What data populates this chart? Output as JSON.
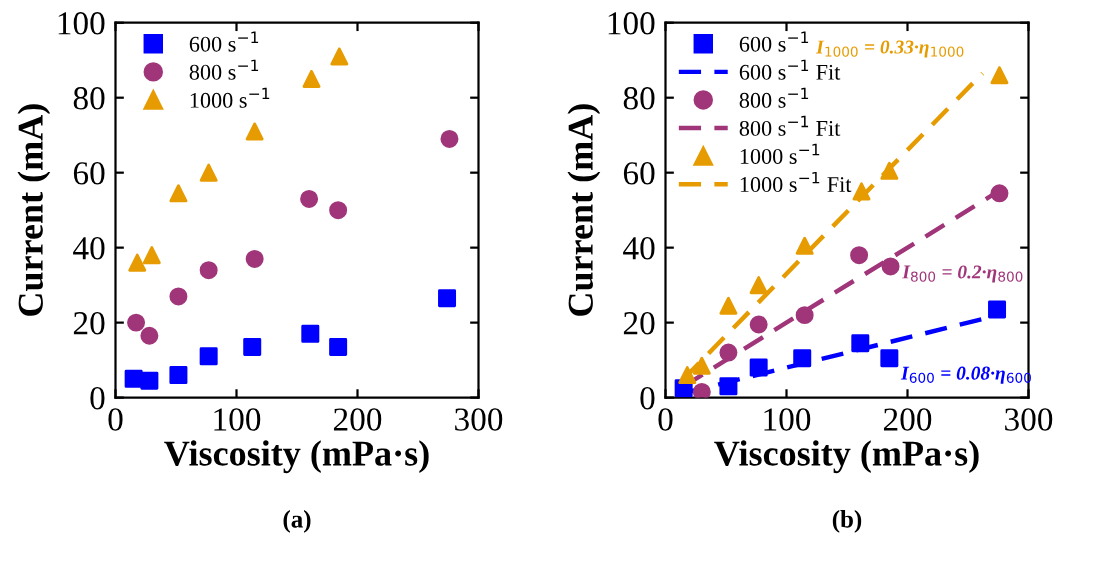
{
  "chart_data": [
    {
      "type": "scatter",
      "title": "(a)",
      "xlabel": "Viscosity (mPa·s)",
      "ylabel": "Current (mA)",
      "xlim": [
        0,
        300
      ],
      "ylim": [
        0,
        100
      ],
      "xticks": [
        0,
        100,
        200,
        300
      ],
      "yticks": [
        0,
        20,
        40,
        60,
        80,
        100
      ],
      "grid": false,
      "legend": "top left",
      "series": [
        {
          "name": "600 s$^{−1}$",
          "color": "#0000ff",
          "marker": "square",
          "x": [
            15,
            28,
            52,
            77,
            113,
            161,
            184,
            274
          ],
          "values": [
            5,
            4.5,
            6,
            11,
            13.5,
            17,
            13.5,
            26.5
          ]
        },
        {
          "name": "800 s$^{−1}$",
          "color": "#a0357a",
          "marker": "circle",
          "x": [
            17,
            28,
            52,
            77,
            115,
            160,
            184,
            276
          ],
          "values": [
            20,
            16.5,
            27,
            34,
            37,
            53,
            50,
            69
          ]
        },
        {
          "name": "1000 s$^{−1}$",
          "color": "#e69b00",
          "marker": "triangle",
          "x": [
            18,
            30,
            52,
            77,
            115,
            162,
            185
          ],
          "values": [
            36,
            38,
            54.5,
            60,
            71,
            85,
            91
          ]
        }
      ]
    },
    {
      "type": "scatter",
      "title": "(b)",
      "xlabel": "Viscosity (mPa·s)",
      "ylabel": "Current (mA)",
      "xlim": [
        0,
        300
      ],
      "ylim": [
        0,
        100
      ],
      "xticks": [
        0,
        100,
        200,
        300
      ],
      "yticks": [
        0,
        20,
        40,
        60,
        80,
        100
      ],
      "grid": false,
      "legend": "top left",
      "series": [
        {
          "name": "600 s$^{−1}$",
          "color": "#0000ff",
          "marker": "square",
          "x": [
            15,
            52,
            77,
            113,
            161,
            185,
            274
          ],
          "values": [
            2.5,
            3,
            8,
            10.5,
            14.5,
            10.5,
            23.5
          ]
        },
        {
          "name": "600 s$^{−1}$ Fit",
          "type": "line",
          "line_style": "dashed",
          "color": "#0000ff",
          "x": [
            15,
            275
          ],
          "values": [
            1.2,
            22
          ]
        },
        {
          "name": "800 s$^{−1}$",
          "color": "#a0357a",
          "marker": "circle",
          "x": [
            30,
            52,
            77,
            115,
            160,
            186,
            276
          ],
          "values": [
            1.5,
            12,
            19.5,
            22,
            38,
            35,
            54.5
          ]
        },
        {
          "name": "800 s$^{−1}$ Fit",
          "type": "line",
          "line_style": "dashed",
          "color": "#a0357a",
          "x": [
            15,
            275
          ],
          "values": [
            3,
            55
          ]
        },
        {
          "name": "1000 s$^{−1}$",
          "color": "#e69b00",
          "marker": "triangle",
          "x": [
            18,
            30,
            52,
            77,
            115,
            162,
            185,
            276
          ],
          "values": [
            6,
            8.5,
            24.5,
            30,
            40.5,
            55,
            60.5,
            86
          ]
        },
        {
          "name": "1000 s$^{−1}$ Fit",
          "type": "line",
          "line_style": "dashed",
          "color": "#e69b00",
          "x": [
            15,
            262
          ],
          "values": [
            5,
            86.5
          ]
        }
      ],
      "annotations": [
        "I$_{1000}$ = 0.33·η$_{1000}$",
        "I$_{800}$ = 0.2·η$_{800}$",
        "I$_{600}$ = 0.08·η$_{600}$"
      ]
    }
  ]
}
